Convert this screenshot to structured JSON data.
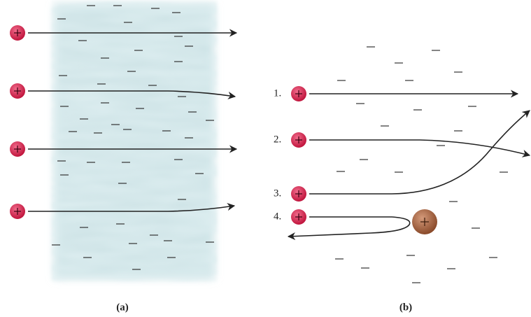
{
  "panels": [
    {
      "label": "(a)"
    },
    {
      "label": "(b)",
      "paths": [
        {
          "label": "1."
        },
        {
          "label": "2."
        },
        {
          "label": "3."
        },
        {
          "label": "4."
        }
      ]
    }
  ]
}
